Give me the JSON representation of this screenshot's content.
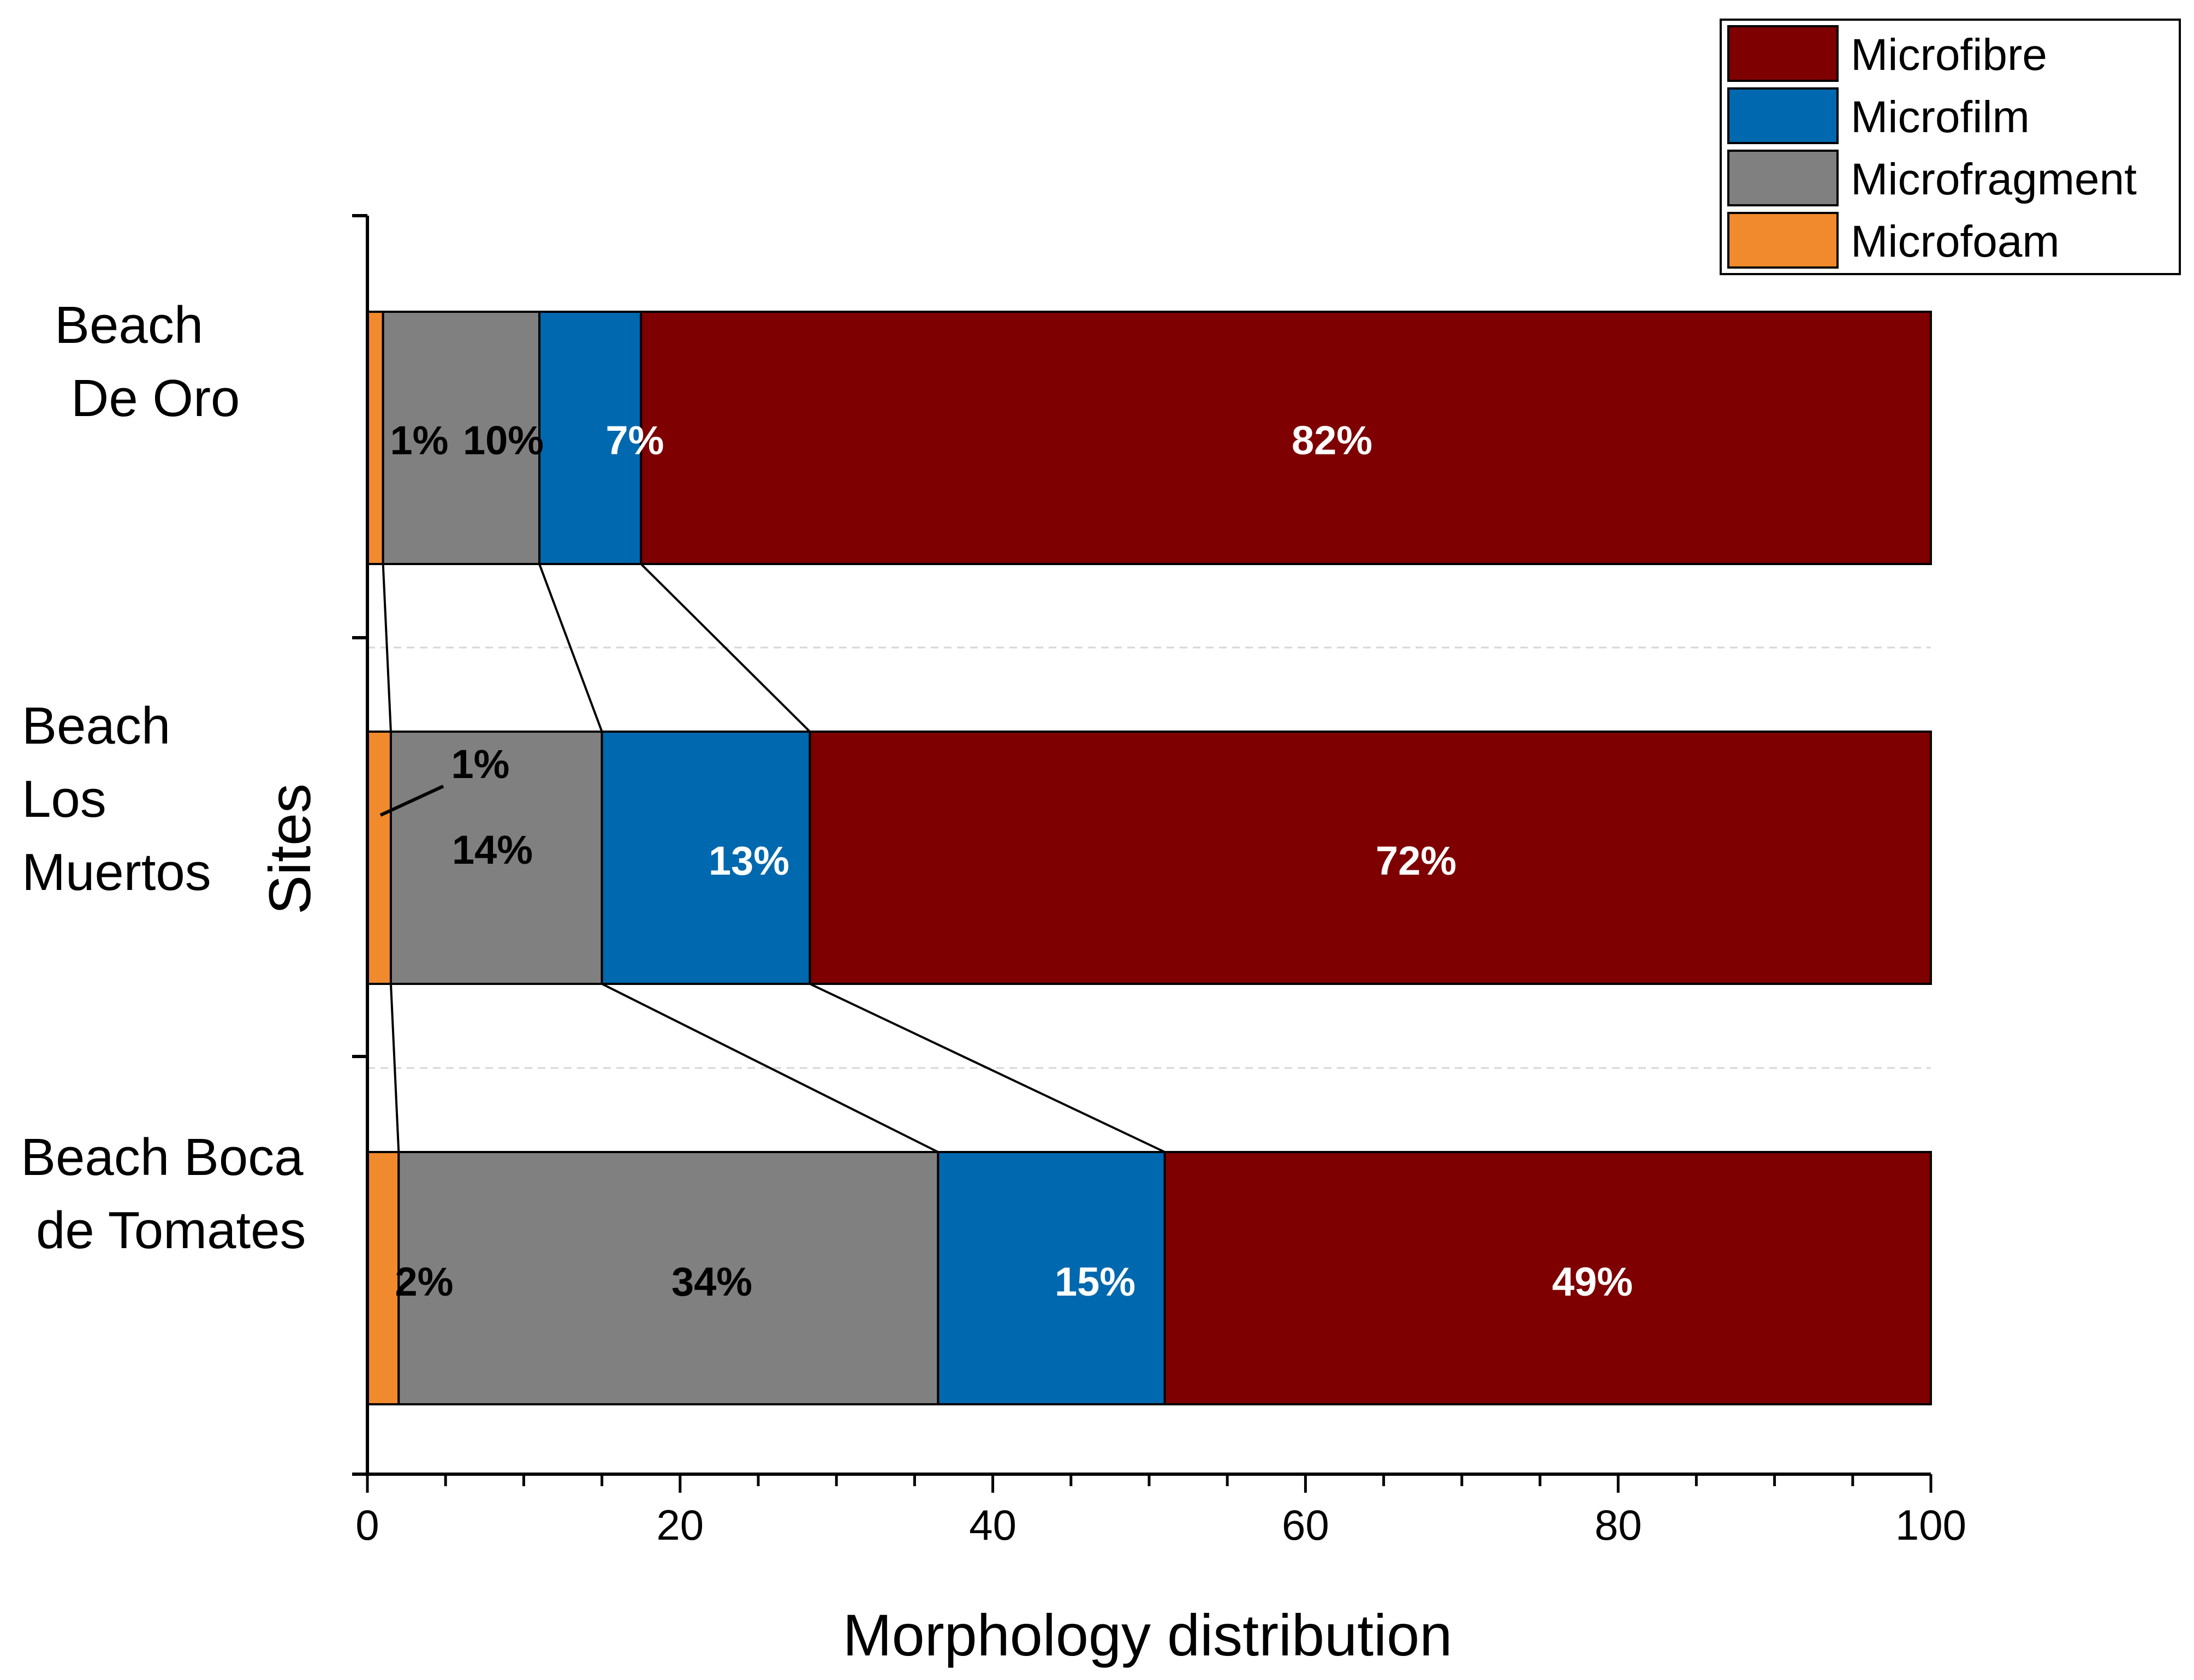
{
  "chart_data": {
    "type": "bar",
    "orientation": "horizontal",
    "stacked": true,
    "xlabel": "Morphology distribution",
    "ylabel": "Sites",
    "xlim": [
      0,
      100
    ],
    "xticks": [
      "0",
      "20",
      "40",
      "60",
      "80",
      "100"
    ],
    "categories": [
      {
        "lines": [
          "Beach",
          "De Oro"
        ]
      },
      {
        "lines": [
          "Beach",
          "Los",
          "Muertos"
        ]
      },
      {
        "lines": [
          "Beach Boca",
          "de Tomates"
        ]
      }
    ],
    "series": [
      {
        "name": "Microfoam",
        "color": "#F08A2C",
        "label_color": "#000000",
        "values": [
          1,
          1.5,
          2
        ],
        "labels": [
          "1%",
          "1%",
          "2%"
        ]
      },
      {
        "name": "Microfragment",
        "color": "#808080",
        "label_color": "#000000",
        "values": [
          10,
          13.5,
          34.5
        ],
        "labels": [
          "10%",
          "14%",
          "34%"
        ]
      },
      {
        "name": "Microfilm",
        "color": "#0068AE",
        "label_color": "#FFFFFF",
        "values": [
          6.5,
          13.3,
          14.5
        ],
        "labels": [
          "7%",
          "13%",
          "15%"
        ]
      },
      {
        "name": "Microfibre",
        "color": "#7E0000",
        "label_color": "#FFFFFF",
        "values": [
          82.5,
          71.7,
          49
        ],
        "labels": [
          "82%",
          "72%",
          "49%"
        ]
      }
    ],
    "legend": {
      "position": "top-right",
      "order": [
        "Microfibre",
        "Microfilm",
        "Microfragment",
        "Microfoam"
      ]
    }
  }
}
